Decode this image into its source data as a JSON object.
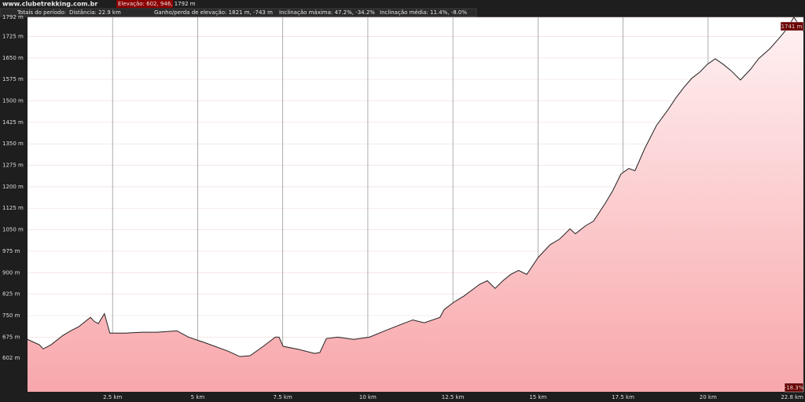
{
  "header": {
    "site": "www.clubetrekking.com.br",
    "elevation": "Elevação: 602, 946, 1792 m",
    "totals": "Totais do período:",
    "distance": "Distância: 22.9 km",
    "gain": "Ganho/perda de elevação: 1821 m, -743 m",
    "max_slope": "Inclinação máxima: 47.2%, -34.2%",
    "avg_slope": "Inclinação média: 11.4%, -8.0%"
  },
  "chart_data": {
    "type": "area",
    "color": "#222222",
    "fill": "#f7a3a8",
    "grid": true,
    "x": [
      0,
      0.35,
      0.46,
      0.69,
      1.04,
      1.27,
      1.5,
      1.85,
      1.96,
      2.08,
      2.26,
      2.42,
      2.89,
      3.35,
      3.81,
      4.39,
      4.73,
      5.2,
      5.89,
      6.24,
      6.54,
      6.93,
      7.28,
      7.39,
      7.51,
      7.97,
      8.43,
      8.59,
      8.78,
      9.12,
      9.58,
      10.05,
      10.5,
      10.97,
      11.32,
      11.66,
      12.12,
      12.24,
      12.54,
      12.82,
      13.28,
      13.51,
      13.74,
      13.97,
      14.2,
      14.43,
      14.67,
      15.01,
      15.36,
      15.63,
      15.94,
      16.1,
      16.4,
      16.63,
      16.97,
      17.2,
      17.44,
      17.67,
      17.85,
      18.13,
      18.48,
      18.82,
      19.05,
      19.28,
      19.52,
      19.75,
      19.98,
      20.21,
      20.44,
      20.67,
      20.95,
      21.25,
      21.48,
      21.82,
      22.1,
      22.29,
      22.52,
      22.8
    ],
    "values": [
      667,
      648,
      634,
      648,
      681,
      697,
      711,
      744,
      730,
      722,
      757,
      689,
      689,
      692,
      692,
      697,
      675,
      656,
      626,
      607,
      610,
      643,
      675,
      675,
      643,
      632,
      618,
      621,
      670,
      675,
      667,
      675,
      697,
      719,
      735,
      725,
      744,
      771,
      798,
      818,
      859,
      872,
      845,
      872,
      894,
      908,
      894,
      954,
      998,
      1017,
      1053,
      1036,
      1064,
      1080,
      1141,
      1187,
      1245,
      1264,
      1256,
      1332,
      1414,
      1469,
      1510,
      1546,
      1579,
      1600,
      1628,
      1647,
      1628,
      1606,
      1573,
      1611,
      1647,
      1683,
      1721,
      1748,
      1792,
      1743
    ],
    "xlim": [
      0,
      22.8
    ],
    "ylim": [
      484,
      1792
    ],
    "xticks": [
      {
        "value": 2.5,
        "label": "2.5 km"
      },
      {
        "value": 5,
        "label": "5 km"
      },
      {
        "value": 7.5,
        "label": "7.5 km"
      },
      {
        "value": 10,
        "label": "10 km"
      },
      {
        "value": 12.5,
        "label": "12.5 km"
      },
      {
        "value": 15,
        "label": "15 km"
      },
      {
        "value": 17.5,
        "label": "17.5 km"
      },
      {
        "value": 20,
        "label": "20 km"
      },
      {
        "value": 22.8,
        "label": "22.8 km"
      }
    ],
    "yticks": [
      {
        "value": 602,
        "label": "602 m"
      },
      {
        "value": 675,
        "label": "675 m"
      },
      {
        "value": 750,
        "label": "750 m"
      },
      {
        "value": 825,
        "label": "825 m"
      },
      {
        "value": 900,
        "label": "900 m"
      },
      {
        "value": 975,
        "label": "975 m"
      },
      {
        "value": 1050,
        "label": "1050 m"
      },
      {
        "value": 1125,
        "label": "1125 m"
      },
      {
        "value": 1200,
        "label": "1200 m"
      },
      {
        "value": 1275,
        "label": "1275 m"
      },
      {
        "value": 1350,
        "label": "1350 m"
      },
      {
        "value": 1425,
        "label": "1425 m"
      },
      {
        "value": 1500,
        "label": "1500 m"
      },
      {
        "value": 1575,
        "label": "1575 m"
      },
      {
        "value": 1650,
        "label": "1650 m"
      },
      {
        "value": 1725,
        "label": "1725 m"
      },
      {
        "value": 1792,
        "label": "1792 m"
      }
    ],
    "annotations": {
      "elevation": "1741 m",
      "slope": "-18.3%"
    }
  }
}
